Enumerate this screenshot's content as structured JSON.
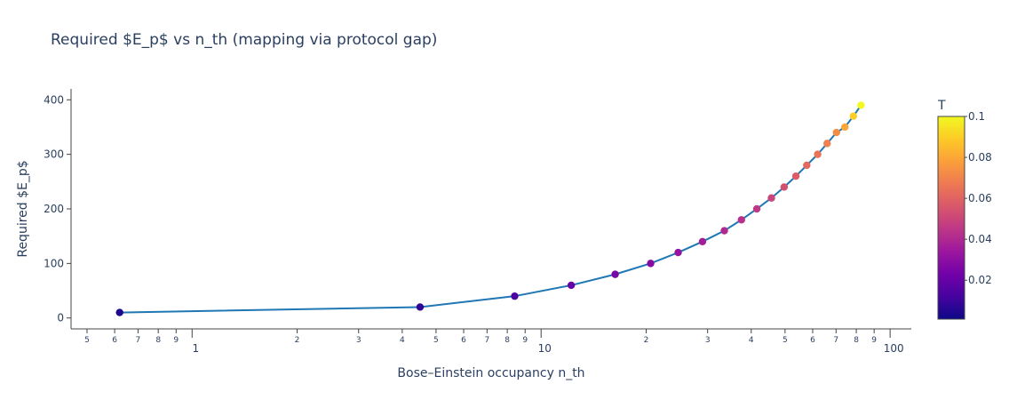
{
  "chart_data": {
    "type": "scatter",
    "title": "Required $E_p$ vs n_th (mapping via protocol gap)",
    "xlabel": "Bose–Einstein occupancy n_th",
    "ylabel": "Required $E_p$",
    "x_scale": "log",
    "xlim": [
      0.45,
      115
    ],
    "ylim": [
      -20,
      420
    ],
    "x_major_ticks": [
      {
        "value": 1,
        "label": "1"
      },
      {
        "value": 10,
        "label": "10"
      },
      {
        "value": 100,
        "label": "100"
      }
    ],
    "x_minor_ticks": [
      {
        "value": 0.5,
        "label": "5"
      },
      {
        "value": 0.6,
        "label": "6"
      },
      {
        "value": 0.7,
        "label": "7"
      },
      {
        "value": 0.8,
        "label": "8"
      },
      {
        "value": 0.9,
        "label": "9"
      },
      {
        "value": 2,
        "label": "2"
      },
      {
        "value": 3,
        "label": "3"
      },
      {
        "value": 4,
        "label": "4"
      },
      {
        "value": 5,
        "label": "5"
      },
      {
        "value": 6,
        "label": "6"
      },
      {
        "value": 7,
        "label": "7"
      },
      {
        "value": 8,
        "label": "8"
      },
      {
        "value": 9,
        "label": "9"
      },
      {
        "value": 20,
        "label": "2"
      },
      {
        "value": 30,
        "label": "3"
      },
      {
        "value": 40,
        "label": "4"
      },
      {
        "value": 50,
        "label": "5"
      },
      {
        "value": 60,
        "label": "6"
      },
      {
        "value": 70,
        "label": "7"
      },
      {
        "value": 80,
        "label": "8"
      },
      {
        "value": 90,
        "label": "9"
      }
    ],
    "y_ticks": [
      0,
      100,
      200,
      300,
      400
    ],
    "grid": false,
    "line_color": "#1f77b4",
    "colorbar": {
      "title": "T",
      "range": [
        0.001,
        0.1
      ],
      "ticks": [
        {
          "value": 0.02,
          "label": "0.02"
        },
        {
          "value": 0.04,
          "label": "0.04"
        },
        {
          "value": 0.06,
          "label": "0.06"
        },
        {
          "value": 0.08,
          "label": "0.08"
        },
        {
          "value": 0.1,
          "label": "0.1"
        }
      ],
      "colorscale": [
        "#0d0887",
        "#46039f",
        "#7201a8",
        "#9c179e",
        "#bd3786",
        "#d8576b",
        "#ed7953",
        "#fb9f3a",
        "#fdca26",
        "#f0f921"
      ]
    },
    "points": [
      {
        "x": 0.62,
        "y": 10,
        "t": 0.004
      },
      {
        "x": 4.5,
        "y": 20,
        "t": 0.008
      },
      {
        "x": 8.4,
        "y": 40,
        "t": 0.014
      },
      {
        "x": 12.2,
        "y": 60,
        "t": 0.02
      },
      {
        "x": 16.3,
        "y": 80,
        "t": 0.025
      },
      {
        "x": 20.6,
        "y": 100,
        "t": 0.028
      },
      {
        "x": 24.7,
        "y": 120,
        "t": 0.032
      },
      {
        "x": 29.0,
        "y": 140,
        "t": 0.036
      },
      {
        "x": 33.5,
        "y": 160,
        "t": 0.04
      },
      {
        "x": 37.5,
        "y": 180,
        "t": 0.043
      },
      {
        "x": 41.5,
        "y": 200,
        "t": 0.046
      },
      {
        "x": 45.7,
        "y": 220,
        "t": 0.05
      },
      {
        "x": 49.7,
        "y": 240,
        "t": 0.054
      },
      {
        "x": 53.7,
        "y": 260,
        "t": 0.058
      },
      {
        "x": 57.7,
        "y": 280,
        "t": 0.062
      },
      {
        "x": 62.0,
        "y": 300,
        "t": 0.065
      },
      {
        "x": 66.0,
        "y": 320,
        "t": 0.069
      },
      {
        "x": 70.2,
        "y": 340,
        "t": 0.073
      },
      {
        "x": 74.2,
        "y": 350,
        "t": 0.08
      },
      {
        "x": 78.5,
        "y": 370,
        "t": 0.09
      },
      {
        "x": 82.5,
        "y": 390,
        "t": 0.1
      }
    ]
  }
}
